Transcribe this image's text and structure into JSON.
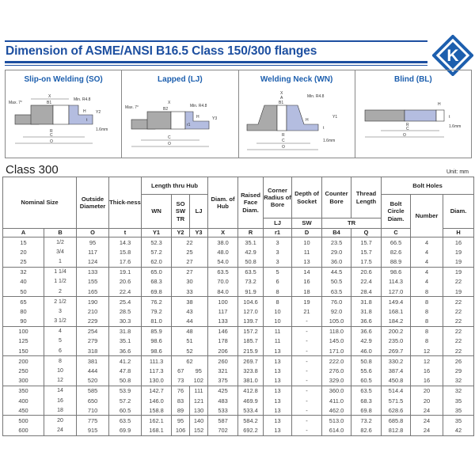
{
  "header": {
    "title": "Dimension of ASME/ANSI B16.5 Class 150/300 flanges",
    "logo_letter": "K",
    "brand_color": "#1d4fa0"
  },
  "panels": [
    {
      "title": "Slip-on Welding (SO)",
      "labels": [
        "X",
        "B1",
        "Max. 7°",
        "Min. R4.8",
        "H",
        "Y2",
        "t",
        "R",
        "C",
        "O",
        "1.6mm"
      ]
    },
    {
      "title": "Lapped (LJ)",
      "labels": [
        "X",
        "B2",
        "Max. 7°",
        "Min. R4.8",
        "H",
        "Y3",
        "r1",
        "C",
        "O"
      ]
    },
    {
      "title": "Welding Neck (WN)",
      "labels": [
        "X",
        "A",
        "B1",
        "Min. R4.8",
        "H",
        "Y1",
        "t",
        "R",
        "C",
        "O",
        "1.6mm"
      ]
    },
    {
      "title": "Blind (BL)",
      "labels": [
        "H",
        "t",
        "R",
        "C",
        "O",
        "1.6mm"
      ]
    }
  ],
  "section": {
    "title": "Class 300",
    "unit": "Unit: mm"
  },
  "table": {
    "headers": {
      "nominal": "Nominal Size",
      "outside": "Outside Diameter",
      "thick": "Thick-ness",
      "length": "Length thru Hub",
      "wn": "WN",
      "so": "SO SW TR",
      "lj": "LJ",
      "hub": "Diam. of Hub",
      "raised": "Raised Face Diam.",
      "corner": "Corner Radius of Bore",
      "depth": "Depth of Socket",
      "counter": "Counter Bore",
      "thread": "Thread Length",
      "bolt": "Bolt Holes",
      "bcd": "Bolt Circle Diam.",
      "number": "Number",
      "diam": "Diam.",
      "sub_lj": "LJ",
      "sub_sw": "SW",
      "sub_tr": "TR"
    },
    "letters": [
      "A",
      "B",
      "O",
      "t",
      "Y1",
      "Y2",
      "Y3",
      "X",
      "R",
      "r1",
      "D",
      "B4",
      "Q",
      "C",
      "H"
    ],
    "rows": [
      [
        "15",
        "1/2",
        "95",
        "14.3",
        "52.3",
        "22",
        null,
        "38.0",
        "35.1",
        "3",
        "10",
        "23.5",
        "15.7",
        "66.5",
        "4",
        "16"
      ],
      [
        "20",
        "3/4",
        "117",
        "15.8",
        "57.2",
        "25",
        null,
        "48.0",
        "42.9",
        "3",
        "11",
        "29.0",
        "15.7",
        "82.6",
        "4",
        "19"
      ],
      [
        "25",
        "1",
        "124",
        "17.6",
        "62.0",
        "27",
        null,
        "54.0",
        "50.8",
        "3",
        "13",
        "36.0",
        "17.5",
        "88.9",
        "4",
        "19"
      ],
      [
        "32",
        "1 1/4",
        "133",
        "19.1",
        "65.0",
        "27",
        null,
        "63.5",
        "63.5",
        "5",
        "14",
        "44.5",
        "20.6",
        "98.6",
        "4",
        "19"
      ],
      [
        "40",
        "1 1/2",
        "155",
        "20.6",
        "68.3",
        "30",
        null,
        "70.0",
        "73.2",
        "6",
        "16",
        "50.5",
        "22.4",
        "114.3",
        "4",
        "22"
      ],
      [
        "50",
        "2",
        "165",
        "22.4",
        "69.8",
        "33",
        null,
        "84.0",
        "91.9",
        "8",
        "18",
        "63.5",
        "28.4",
        "127.0",
        "8",
        "19"
      ],
      [
        "65",
        "2 1/2",
        "190",
        "25.4",
        "76.2",
        "38",
        null,
        "100",
        "104.6",
        "8",
        "19",
        "76.0",
        "31.8",
        "149.4",
        "8",
        "22"
      ],
      [
        "80",
        "3",
        "210",
        "28.5",
        "79.2",
        "43",
        null,
        "117",
        "127.0",
        "10",
        "21",
        "92.0",
        "31.8",
        "168.1",
        "8",
        "22"
      ],
      [
        "90",
        "3 1/2",
        "229",
        "30.3",
        "81.0",
        "44",
        null,
        "133",
        "139.7",
        "10",
        "-",
        "105.0",
        "36.6",
        "184.2",
        "8",
        "22"
      ],
      [
        "100",
        "4",
        "254",
        "31.8",
        "85.9",
        "48",
        null,
        "146",
        "157.2",
        "11",
        "-",
        "118.0",
        "36.6",
        "200.2",
        "8",
        "22"
      ],
      [
        "125",
        "5",
        "279",
        "35.1",
        "98.6",
        "51",
        null,
        "178",
        "185.7",
        "11",
        "-",
        "145.0",
        "42.9",
        "235.0",
        "8",
        "22"
      ],
      [
        "150",
        "6",
        "318",
        "36.6",
        "98.6",
        "52",
        null,
        "206",
        "215.9",
        "13",
        "-",
        "171.0",
        "46.0",
        "269.7",
        "12",
        "22"
      ],
      [
        "200",
        "8",
        "381",
        "41.2",
        "111.3",
        "62",
        null,
        "260",
        "269.7",
        "13",
        "-",
        "222.0",
        "50.8",
        "330.2",
        "12",
        "26"
      ],
      [
        "250",
        "10",
        "444",
        "47.8",
        "117.3",
        "67",
        "95",
        "321",
        "323.8",
        "13",
        "-",
        "276.0",
        "55.6",
        "387.4",
        "16",
        "29"
      ],
      [
        "300",
        "12",
        "520",
        "50.8",
        "130.0",
        "73",
        "102",
        "375",
        "381.0",
        "13",
        "-",
        "329.0",
        "60.5",
        "450.8",
        "16",
        "32"
      ],
      [
        "350",
        "14",
        "585",
        "53.9",
        "142.7",
        "76",
        "111",
        "425",
        "412.8",
        "13",
        "-",
        "360.0",
        "63.5",
        "514.4",
        "20",
        "32"
      ],
      [
        "400",
        "16",
        "650",
        "57.2",
        "146.0",
        "83",
        "121",
        "483",
        "469.9",
        "13",
        "-",
        "411.0",
        "68.3",
        "571.5",
        "20",
        "35"
      ],
      [
        "450",
        "18",
        "710",
        "60.5",
        "158.8",
        "89",
        "130",
        "533",
        "533.4",
        "13",
        "-",
        "462.0",
        "69.8",
        "628.6",
        "24",
        "35"
      ],
      [
        "500",
        "20",
        "775",
        "63.5",
        "162.1",
        "95",
        "140",
        "587",
        "584.2",
        "13",
        "-",
        "513.0",
        "73.2",
        "685.8",
        "24",
        "35"
      ],
      [
        "600",
        "24",
        "915",
        "69.9",
        "168.1",
        "106",
        "152",
        "702",
        "692.2",
        "13",
        "-",
        "614.0",
        "82.6",
        "812.8",
        "24",
        "42"
      ]
    ]
  }
}
